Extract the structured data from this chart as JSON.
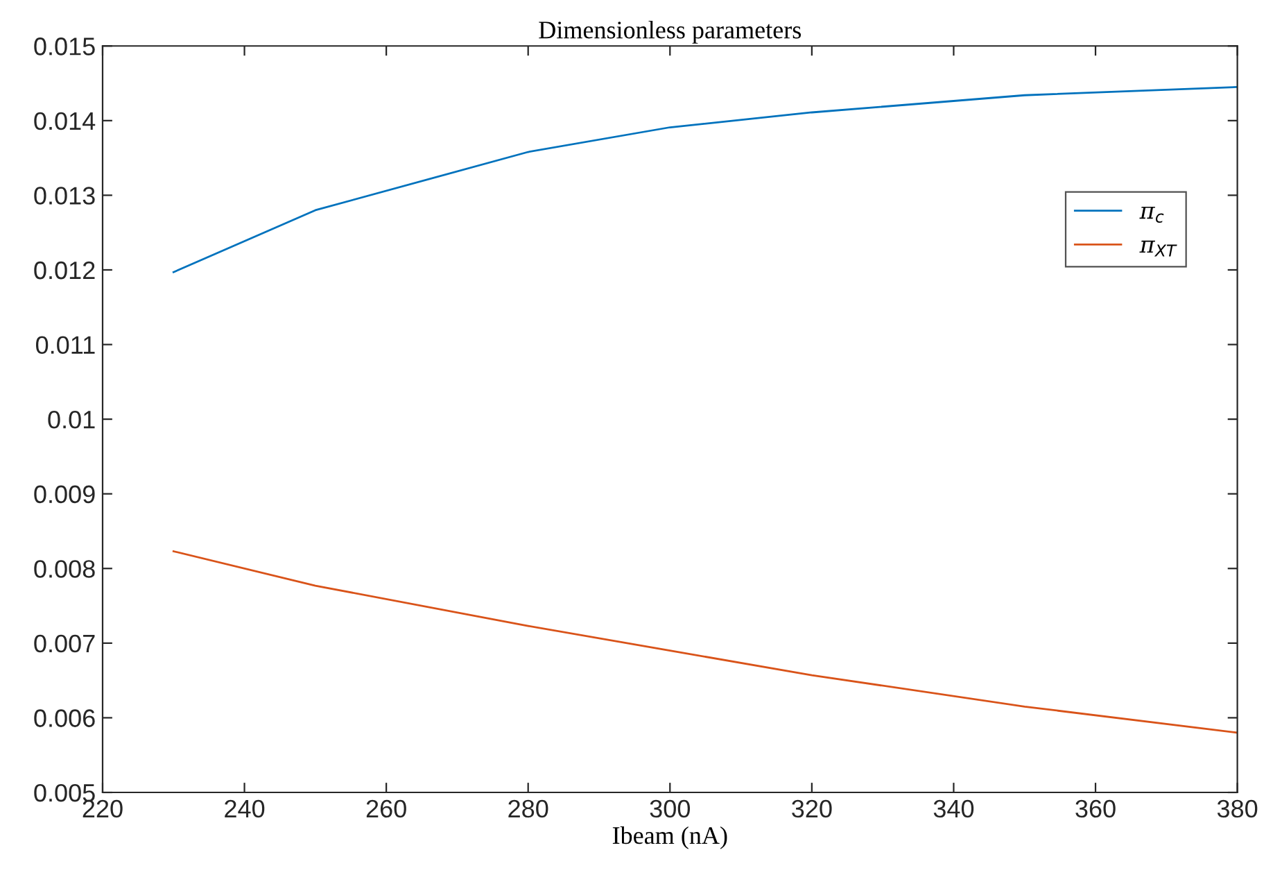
{
  "chart_data": {
    "type": "line",
    "title": "Dimensionless parameters",
    "xlabel": "Ibeam (nA)",
    "x": [
      230,
      250,
      280,
      300,
      320,
      350,
      380
    ],
    "series": [
      {
        "name": "π$_{c}$",
        "color": "#0072bd",
        "values": [
          0.01197,
          0.0128,
          0.01358,
          0.01391,
          0.01411,
          0.01434,
          0.01445
        ]
      },
      {
        "name": "π$_{XT}$",
        "color": "#d95319",
        "values": [
          0.00823,
          0.00777,
          0.00723,
          0.0069,
          0.00657,
          0.00615,
          0.0058
        ]
      }
    ],
    "xlim": [
      220,
      380
    ],
    "xticks": [
      220,
      240,
      260,
      280,
      300,
      320,
      340,
      360,
      380
    ],
    "ylim": [
      0.005,
      0.015
    ],
    "yticks": [
      0.005,
      0.006,
      0.007,
      0.008,
      0.009,
      0.01,
      0.011,
      0.012,
      0.013,
      0.014,
      0.015
    ],
    "legend": "top right",
    "grid": false,
    "marker": "none",
    "line_style": "solid"
  }
}
